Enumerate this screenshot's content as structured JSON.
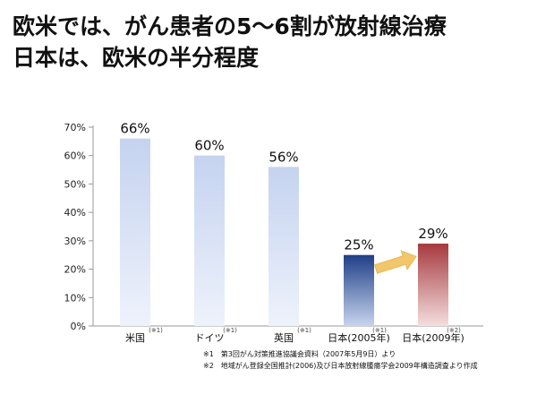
{
  "slide": {
    "title_line1": "欧米では、がん患者の5〜6割が放射線治療",
    "title_line2": "日本は、欧米の半分程度"
  },
  "chart_data": {
    "type": "bar",
    "categories": [
      "米国",
      "ドイツ",
      "英国",
      "日本(2005年)",
      "日本(2009年)"
    ],
    "category_notes": [
      "(※1)",
      "(※1)",
      "(※1)",
      "(※1)",
      "(※2)"
    ],
    "values": [
      66,
      60,
      56,
      25,
      29
    ],
    "value_labels": [
      "66%",
      "60%",
      "56%",
      "25%",
      "29%"
    ],
    "ylim": [
      0,
      70
    ],
    "yticks": [
      0,
      10,
      20,
      30,
      40,
      50,
      60,
      70
    ],
    "ytick_labels": [
      "0%",
      "10%",
      "20%",
      "30%",
      "40%",
      "50%",
      "60%",
      "70%"
    ],
    "grid": false,
    "colors": {
      "western_top": "#c5d3f0",
      "western_bottom": "#eef2fb",
      "japan2005_top": "#1f3f87",
      "japan2005_bottom": "#c7d4ee",
      "japan2009_top": "#a63a3e",
      "japan2009_bottom": "#f4dede",
      "arrow": "#f2c76b"
    }
  },
  "notes": [
    "※1　第3回がん対策推進協議会資料（2007年5月9日）より",
    "※2　地域がん登録全国推計(2006)及び日本放射線腫瘍学会2009年構造調査より作成"
  ]
}
